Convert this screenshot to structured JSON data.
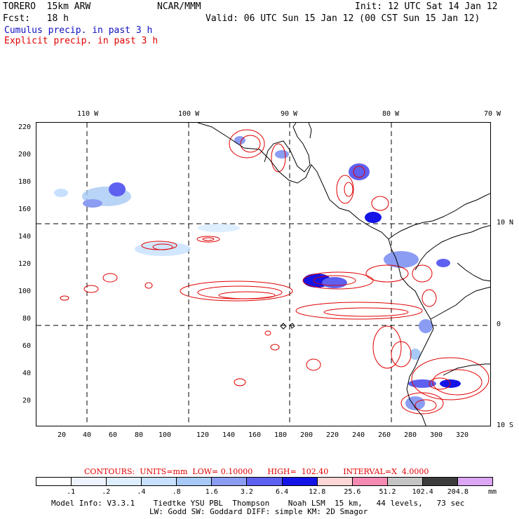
{
  "header": {
    "model": "TORERO  15km ARW",
    "org": "NCAR/MMM",
    "init": "Init: 12 UTC Sat 14 Jan 12",
    "fcst": "Fcst:   18 h",
    "valid": "Valid: 06 UTC Sun 15 Jan 12 (00 CST Sun 15 Jan 12)",
    "legend_cumulus": "Cumulus precip. in past 3 h",
    "legend_explicit": "Explicit precip. in past 3 h"
  },
  "axes": {
    "lon_top": [
      "110 W",
      "100 W",
      "90 W",
      "80 W",
      "70 W"
    ],
    "lat_right": [
      "10 N",
      "0",
      "10 S"
    ],
    "y_ticks": [
      "220",
      "200",
      "180",
      "160",
      "140",
      "120",
      "100",
      "80",
      "60",
      "40",
      "20"
    ],
    "x_ticks": [
      "20",
      "40",
      "60",
      "80",
      "100",
      "120",
      "140",
      "160",
      "180",
      "200",
      "220",
      "240",
      "260",
      "280",
      "300",
      "320"
    ]
  },
  "contour_info": "CONTOURS:  UNITS=mm  LOW= 0.10000      HIGH=  102.40      INTERVAL=X  4.0000",
  "colorbar": {
    "labels": [
      ".1",
      ".2",
      ".4",
      ".8",
      "1.6",
      "3.2",
      "6.4",
      "12.8",
      "25.6",
      "51.2",
      "102.4",
      "204.8"
    ],
    "unit": "mm",
    "colors": [
      "#ffffff",
      "#eef3ff",
      "#ddeeff",
      "#c7e0ff",
      "#a6c9f5",
      "#8b9cf3",
      "#5e60f0",
      "#1414e6",
      "#ffd6d6",
      "#f58ab2",
      "#c4c4c4",
      "#3c3c3c",
      "#dca6f5"
    ]
  },
  "model_info": {
    "line1": "Model Info: V3.3.1    Tiedtke YSU PBL  Thompson    Noah LSM  15 km,   44 levels,   73 sec",
    "line2": "LW: Godd SW: Goddard DIFF: simple KM: 2D Smagor"
  }
}
